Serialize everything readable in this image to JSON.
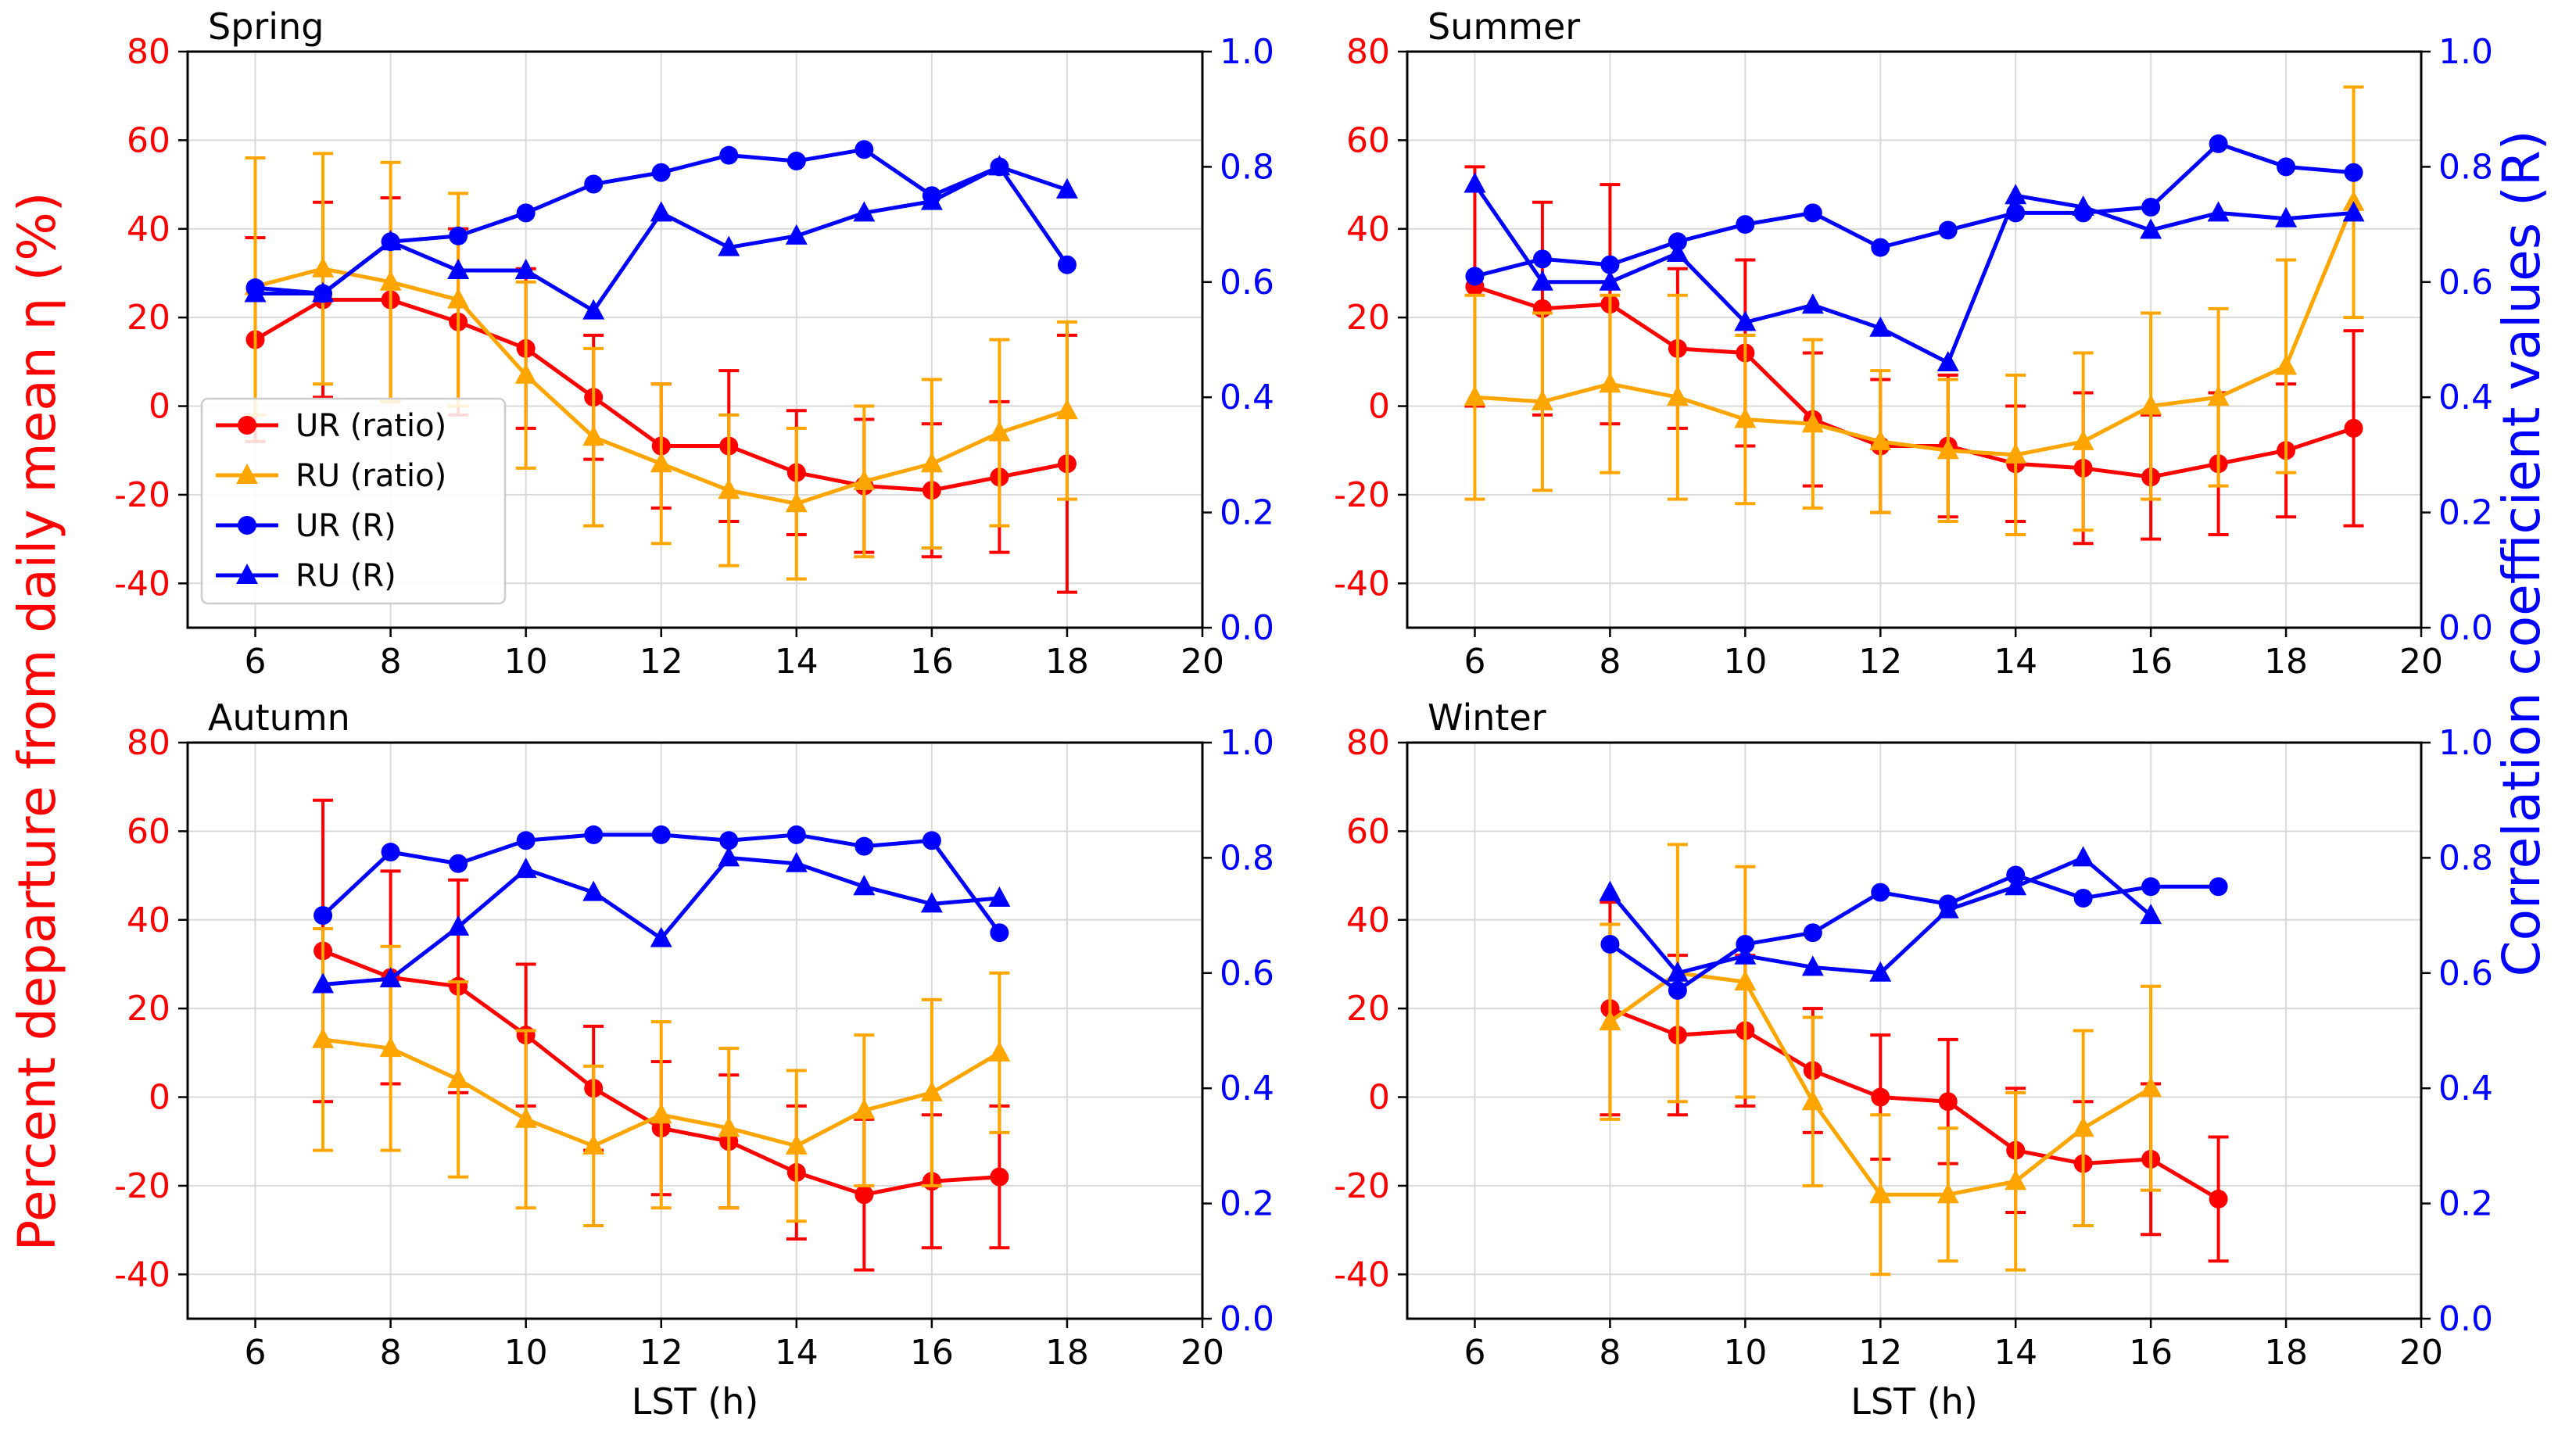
{
  "figure": {
    "left_ylabel": "Percent departure from daily mean η (%)",
    "right_ylabel": "Correlation coefficient values (R)",
    "xlabel": "LST (h)"
  },
  "colors": {
    "ur_ratio": "#ff0000",
    "ru_ratio": "#ffa500",
    "r_series": "#0000ff",
    "grid": "#d9d9d9",
    "left_axis_text": "#ff0000",
    "right_axis_text": "#0000ff"
  },
  "legend": [
    {
      "label": "UR (ratio)",
      "color": "#ff0000",
      "marker": "circle"
    },
    {
      "label": "RU (ratio)",
      "color": "#ffa500",
      "marker": "triangle"
    },
    {
      "label": "UR (R)",
      "color": "#0000ff",
      "marker": "circle"
    },
    {
      "label": "RU (R)",
      "color": "#0000ff",
      "marker": "triangle"
    }
  ],
  "chart_data": [
    {
      "type": "line",
      "title": "Spring",
      "xlim": [
        5,
        20
      ],
      "xticks": [
        6,
        8,
        10,
        12,
        14,
        16,
        18,
        20
      ],
      "ylim": [
        -50,
        80
      ],
      "yticks": [
        -40,
        -20,
        0,
        20,
        40,
        60,
        80
      ],
      "y2lim": [
        0,
        1
      ],
      "y2ticks": [
        "0.0",
        "0.2",
        "0.4",
        "0.6",
        "0.8",
        "1.0"
      ],
      "grid": true,
      "legend_position": "center-left",
      "series": [
        {
          "name": "UR (ratio)",
          "axis": "left",
          "color": "#ff0000",
          "marker": "circle",
          "x": [
            6,
            7,
            8,
            9,
            10,
            11,
            12,
            13,
            14,
            15,
            16,
            17,
            18
          ],
          "y": [
            15,
            24,
            24,
            19,
            13,
            2,
            -9,
            -9,
            -15,
            -18,
            -19,
            -16,
            -13
          ],
          "err": [
            23,
            22,
            23,
            21,
            18,
            14,
            14,
            17,
            14,
            15,
            15,
            17,
            29
          ]
        },
        {
          "name": "RU (ratio)",
          "axis": "left",
          "color": "#ffa500",
          "marker": "triangle",
          "x": [
            6,
            7,
            8,
            9,
            10,
            11,
            12,
            13,
            14,
            15,
            16,
            17,
            18
          ],
          "y": [
            27,
            31,
            28,
            24,
            7,
            -7,
            -13,
            -19,
            -22,
            -17,
            -13,
            -6,
            -1
          ],
          "err": [
            29,
            26,
            27,
            24,
            21,
            20,
            18,
            17,
            17,
            17,
            19,
            21,
            20
          ]
        },
        {
          "name": "UR (R)",
          "axis": "right",
          "color": "#0000ff",
          "marker": "circle",
          "x": [
            6,
            7,
            8,
            9,
            10,
            11,
            12,
            13,
            14,
            15,
            16,
            17,
            18
          ],
          "y": [
            0.59,
            0.58,
            0.67,
            0.68,
            0.72,
            0.77,
            0.79,
            0.82,
            0.81,
            0.83,
            0.75,
            0.8,
            0.63
          ]
        },
        {
          "name": "RU (R)",
          "axis": "right",
          "color": "#0000ff",
          "marker": "triangle",
          "x": [
            6,
            7,
            8,
            9,
            10,
            11,
            12,
            13,
            14,
            15,
            16,
            17,
            18
          ],
          "y": [
            0.58,
            0.58,
            0.67,
            0.62,
            0.62,
            0.55,
            0.72,
            0.66,
            0.68,
            0.72,
            0.74,
            0.8,
            0.76
          ]
        }
      ]
    },
    {
      "type": "line",
      "title": "Summer",
      "xlim": [
        5,
        20
      ],
      "xticks": [
        6,
        8,
        10,
        12,
        14,
        16,
        18,
        20
      ],
      "ylim": [
        -50,
        80
      ],
      "yticks": [
        -40,
        -20,
        0,
        20,
        40,
        60,
        80
      ],
      "y2lim": [
        0,
        1
      ],
      "y2ticks": [
        "0.0",
        "0.2",
        "0.4",
        "0.6",
        "0.8",
        "1.0"
      ],
      "grid": true,
      "series": [
        {
          "name": "UR (ratio)",
          "axis": "left",
          "color": "#ff0000",
          "marker": "circle",
          "x": [
            6,
            7,
            8,
            9,
            10,
            11,
            12,
            13,
            14,
            15,
            16,
            17,
            18,
            19
          ],
          "y": [
            27,
            22,
            23,
            13,
            12,
            -3,
            -9,
            -9,
            -13,
            -14,
            -16,
            -13,
            -10,
            -5
          ],
          "err": [
            27,
            24,
            27,
            18,
            21,
            15,
            15,
            16,
            13,
            17,
            14,
            16,
            15,
            22
          ]
        },
        {
          "name": "RU (ratio)",
          "axis": "left",
          "color": "#ffa500",
          "marker": "triangle",
          "x": [
            6,
            7,
            8,
            9,
            10,
            11,
            12,
            13,
            14,
            15,
            16,
            17,
            18,
            19
          ],
          "y": [
            2,
            1,
            5,
            2,
            -3,
            -4,
            -8,
            -10,
            -11,
            -8,
            0,
            2,
            9,
            46
          ],
          "err": [
            23,
            20,
            20,
            23,
            19,
            19,
            16,
            16,
            18,
            20,
            21,
            20,
            24,
            26
          ]
        },
        {
          "name": "UR (R)",
          "axis": "right",
          "color": "#0000ff",
          "marker": "circle",
          "x": [
            6,
            7,
            8,
            9,
            10,
            11,
            12,
            13,
            14,
            15,
            16,
            17,
            18,
            19
          ],
          "y": [
            0.61,
            0.64,
            0.63,
            0.67,
            0.7,
            0.72,
            0.66,
            0.69,
            0.72,
            0.72,
            0.73,
            0.84,
            0.8,
            0.79
          ]
        },
        {
          "name": "RU (R)",
          "axis": "right",
          "color": "#0000ff",
          "marker": "triangle",
          "x": [
            6,
            7,
            8,
            9,
            10,
            11,
            12,
            13,
            14,
            15,
            16,
            17,
            18,
            19
          ],
          "y": [
            0.77,
            0.6,
            0.6,
            0.65,
            0.53,
            0.56,
            0.52,
            0.46,
            0.75,
            0.73,
            0.69,
            0.72,
            0.71,
            0.72
          ]
        }
      ]
    },
    {
      "type": "line",
      "title": "Autumn",
      "xlim": [
        5,
        20
      ],
      "xticks": [
        6,
        8,
        10,
        12,
        14,
        16,
        18,
        20
      ],
      "ylim": [
        -50,
        80
      ],
      "yticks": [
        -40,
        -20,
        0,
        20,
        40,
        60,
        80
      ],
      "y2lim": [
        0,
        1
      ],
      "y2ticks": [
        "0.0",
        "0.2",
        "0.4",
        "0.6",
        "0.8",
        "1.0"
      ],
      "grid": true,
      "series": [
        {
          "name": "UR (ratio)",
          "axis": "left",
          "color": "#ff0000",
          "marker": "circle",
          "x": [
            7,
            8,
            9,
            10,
            11,
            12,
            13,
            14,
            15,
            16,
            17
          ],
          "y": [
            33,
            27,
            25,
            14,
            2,
            -7,
            -10,
            -17,
            -22,
            -19,
            -18
          ],
          "err": [
            34,
            24,
            24,
            16,
            14,
            15,
            15,
            15,
            17,
            15,
            16
          ]
        },
        {
          "name": "RU (ratio)",
          "axis": "left",
          "color": "#ffa500",
          "marker": "triangle",
          "x": [
            7,
            8,
            9,
            10,
            11,
            12,
            13,
            14,
            15,
            16,
            17
          ],
          "y": [
            13,
            11,
            4,
            -5,
            -11,
            -4,
            -7,
            -11,
            -3,
            1,
            10
          ],
          "err": [
            25,
            23,
            22,
            20,
            18,
            21,
            18,
            17,
            17,
            21,
            18
          ]
        },
        {
          "name": "UR (R)",
          "axis": "right",
          "color": "#0000ff",
          "marker": "circle",
          "x": [
            7,
            8,
            9,
            10,
            11,
            12,
            13,
            14,
            15,
            16,
            17
          ],
          "y": [
            0.7,
            0.81,
            0.79,
            0.83,
            0.84,
            0.84,
            0.83,
            0.84,
            0.82,
            0.83,
            0.67
          ]
        },
        {
          "name": "RU (R)",
          "axis": "right",
          "color": "#0000ff",
          "marker": "triangle",
          "x": [
            7,
            8,
            9,
            10,
            11,
            12,
            13,
            14,
            15,
            16,
            17
          ],
          "y": [
            0.58,
            0.59,
            0.68,
            0.78,
            0.74,
            0.66,
            0.8,
            0.79,
            0.75,
            0.72,
            0.73
          ]
        }
      ]
    },
    {
      "type": "line",
      "title": "Winter",
      "xlim": [
        5,
        20
      ],
      "xticks": [
        6,
        8,
        10,
        12,
        14,
        16,
        18,
        20
      ],
      "ylim": [
        -50,
        80
      ],
      "yticks": [
        -40,
        -20,
        0,
        20,
        40,
        60,
        80
      ],
      "y2lim": [
        0,
        1
      ],
      "y2ticks": [
        "0.0",
        "0.2",
        "0.4",
        "0.6",
        "0.8",
        "1.0"
      ],
      "grid": true,
      "series": [
        {
          "name": "UR (ratio)",
          "axis": "left",
          "color": "#ff0000",
          "marker": "circle",
          "x": [
            8,
            9,
            10,
            11,
            12,
            13,
            14,
            15,
            16,
            17
          ],
          "y": [
            20,
            14,
            15,
            6,
            0,
            -1,
            -12,
            -15,
            -14,
            -23
          ],
          "err": [
            24,
            18,
            17,
            14,
            14,
            14,
            14,
            14,
            17,
            14
          ]
        },
        {
          "name": "RU (ratio)",
          "axis": "left",
          "color": "#ffa500",
          "marker": "triangle",
          "x": [
            8,
            9,
            10,
            11,
            12,
            13,
            14,
            15,
            16
          ],
          "y": [
            17,
            28,
            26,
            -1,
            -22,
            -22,
            -19,
            -7,
            2
          ],
          "err": [
            22,
            29,
            26,
            19,
            18,
            15,
            20,
            22,
            23
          ]
        },
        {
          "name": "UR (R)",
          "axis": "right",
          "color": "#0000ff",
          "marker": "circle",
          "x": [
            8,
            9,
            10,
            11,
            12,
            13,
            14,
            15,
            16,
            17
          ],
          "y": [
            0.65,
            0.57,
            0.65,
            0.67,
            0.74,
            0.72,
            0.77,
            0.73,
            0.75,
            0.75
          ]
        },
        {
          "name": "RU (R)",
          "axis": "right",
          "color": "#0000ff",
          "marker": "triangle",
          "x": [
            8,
            9,
            10,
            11,
            12,
            13,
            14,
            15,
            16
          ],
          "y": [
            0.74,
            0.6,
            0.63,
            0.61,
            0.6,
            0.71,
            0.75,
            0.8,
            0.7
          ]
        }
      ]
    }
  ]
}
